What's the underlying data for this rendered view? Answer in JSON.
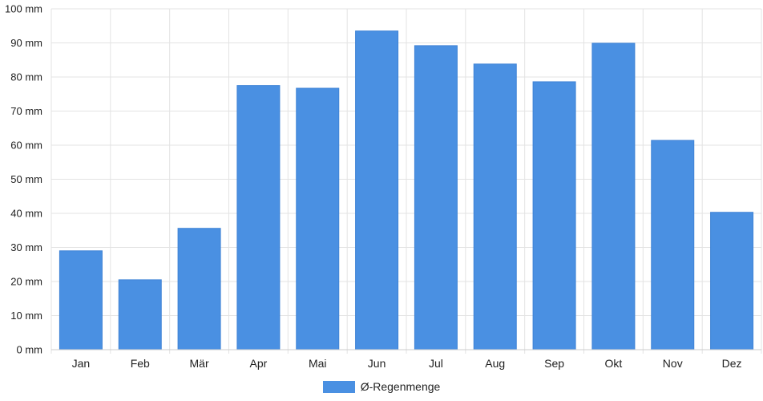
{
  "chart_data": {
    "type": "bar",
    "categories": [
      "Jan",
      "Feb",
      "Mär",
      "Apr",
      "Mai",
      "Jun",
      "Jul",
      "Aug",
      "Sep",
      "Okt",
      "Nov",
      "Dez"
    ],
    "series": [
      {
        "name": "Ø-Regenmenge",
        "values": [
          29,
          20.5,
          35.6,
          77.5,
          76.7,
          93.5,
          89.2,
          83.8,
          78.6,
          89.9,
          61.4,
          40.3
        ]
      }
    ],
    "y_ticks": [
      "0 mm",
      "10 mm",
      "20 mm",
      "30 mm",
      "40 mm",
      "50 mm",
      "60 mm",
      "70 mm",
      "80 mm",
      "90 mm",
      "100 mm"
    ],
    "ylim": [
      0,
      100
    ],
    "y_unit": "mm",
    "title": "",
    "xlabel": "",
    "ylabel": "",
    "grid": true,
    "legend_position": "bottom-center",
    "colors": {
      "bar": "#4a90e2",
      "grid": "#e3e3e3",
      "axis": "#cccccc",
      "text": "#222222"
    }
  }
}
